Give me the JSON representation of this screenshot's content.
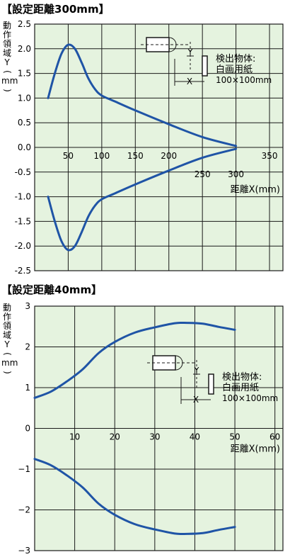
{
  "chart_data": [
    {
      "type": "line",
      "title": "【設定距離300mm】",
      "ylabel": "動作領域Y(mm)",
      "ylabel_chars": [
        "動",
        "作",
        "領",
        "域",
        "Y",
        "(",
        "mm",
        ")"
      ],
      "xlabel": "距離X(mm)",
      "xlim": [
        0,
        370
      ],
      "ylim": [
        -2.5,
        2.5
      ],
      "grid": true,
      "y_ticks": [
        "2.5",
        "2.0",
        "1.5",
        "1.0",
        "0.5",
        "0.0",
        "-0.5",
        "-1.0",
        "-1.5",
        "-2.0",
        "-2.5"
      ],
      "x_ticks_upper": [
        "50",
        "100",
        "150",
        "200",
        "350"
      ],
      "x_ticks_lower": [
        "250",
        "300"
      ],
      "series": [
        {
          "x": [
            20,
            30,
            40,
            50,
            60,
            70,
            80,
            90,
            100,
            120,
            150,
            200,
            250,
            300
          ],
          "y": [
            1.0,
            1.5,
            1.9,
            2.08,
            2.0,
            1.72,
            1.4,
            1.18,
            1.05,
            0.93,
            0.75,
            0.47,
            0.21,
            0.03
          ]
        },
        {
          "x": [
            20,
            30,
            40,
            50,
            60,
            70,
            80,
            90,
            100,
            120,
            150,
            200,
            250,
            300
          ],
          "y": [
            -1.0,
            -1.5,
            -1.9,
            -2.08,
            -2.0,
            -1.72,
            -1.4,
            -1.18,
            -1.05,
            -0.93,
            -0.75,
            -0.47,
            -0.21,
            -0.03
          ]
        }
      ],
      "inset": {
        "x_label": "X",
        "y_label": "Y",
        "object_line1": "検出物体:",
        "object_line2": "白画用紙",
        "object_line3": "100×100mm"
      },
      "colors": {
        "background": "#e5f3df",
        "grid": "#1a1a1a",
        "curve": "#1f54a6"
      }
    },
    {
      "type": "line",
      "title": "【設定距離40mm】",
      "ylabel": "動作領域Y(mm)",
      "ylabel_chars": [
        "動",
        "作",
        "領",
        "域",
        "Y",
        "(",
        "mm",
        ")"
      ],
      "xlabel": "距離X(mm)",
      "xlim": [
        0,
        62
      ],
      "ylim": [
        -3,
        3
      ],
      "grid": true,
      "y_ticks": [
        "3",
        "2",
        "1",
        "0",
        "−1",
        "−2",
        "−3"
      ],
      "x_ticks": [
        "10",
        "20",
        "30",
        "40",
        "50",
        "60"
      ],
      "series": [
        {
          "x": [
            0,
            4,
            8,
            12,
            16,
            20,
            25,
            30,
            35,
            38,
            42,
            46,
            50
          ],
          "y": [
            0.75,
            0.9,
            1.15,
            1.45,
            1.85,
            2.12,
            2.35,
            2.48,
            2.58,
            2.59,
            2.57,
            2.49,
            2.42
          ]
        },
        {
          "x": [
            0,
            4,
            8,
            12,
            16,
            20,
            25,
            30,
            35,
            38,
            42,
            46,
            50
          ],
          "y": [
            -0.75,
            -0.9,
            -1.15,
            -1.45,
            -1.85,
            -2.12,
            -2.35,
            -2.48,
            -2.58,
            -2.59,
            -2.57,
            -2.49,
            -2.42
          ]
        }
      ],
      "inset": {
        "x_label": "X",
        "y_label": "Y",
        "object_line1": "検出物体:",
        "object_line2": "白画用紙",
        "object_line3": "100×100mm"
      },
      "colors": {
        "background": "#e5f3df",
        "grid": "#1a1a1a",
        "curve": "#1f54a6"
      }
    }
  ]
}
